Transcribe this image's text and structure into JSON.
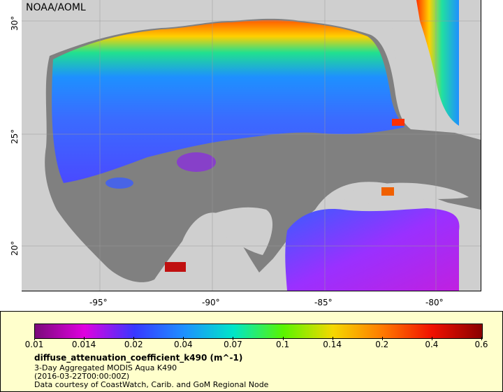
{
  "map": {
    "credit": "NOAA/AOML",
    "lat_labels": [
      "30°",
      "25°",
      "20°"
    ],
    "lon_labels": [
      "-95°",
      "-90°",
      "-85°",
      "-80°"
    ]
  },
  "legend": {
    "ticks": [
      "0.01",
      "0.014",
      "0.02",
      "0.04",
      "0.07",
      "0.1",
      "0.14",
      "0.2",
      "0.4",
      "0.6"
    ],
    "colors": [
      "#7a0a7a",
      "#e000e0",
      "#3838ff",
      "#1e90ff",
      "#00e6c8",
      "#5af500",
      "#f5d800",
      "#ff7a00",
      "#f01000",
      "#8a0000"
    ],
    "variable": "diffuse_attenuation_coefficient_k490 (m^-1)",
    "product": "3-Day Aggregated MODIS Aqua K490",
    "date": "(2016-03-22T00:00:00Z)",
    "courtesy": "Data courtesy of CoastWatch, Carib. and GoM Regional Node"
  }
}
